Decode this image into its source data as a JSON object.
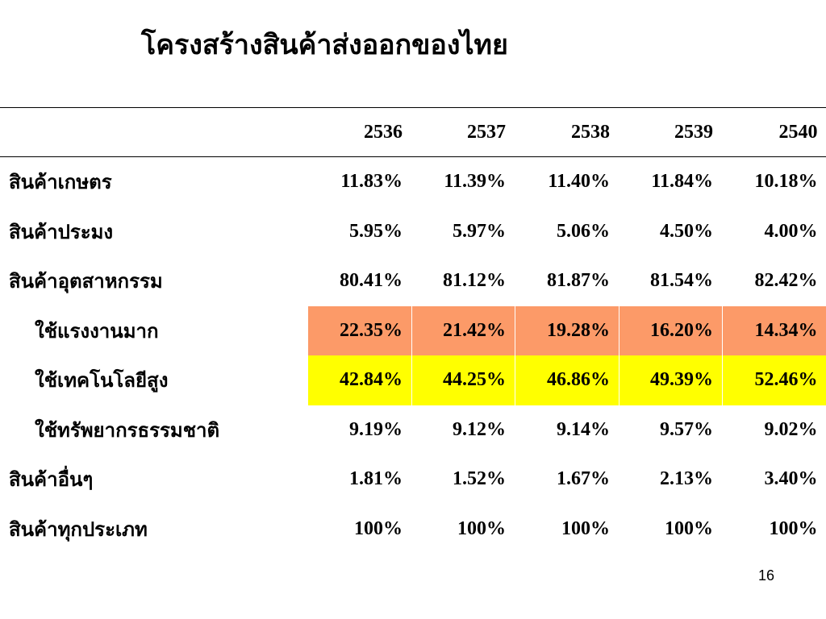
{
  "title": "โครงสร้างสินค้าส่งออกของไทย",
  "table": {
    "header": [
      "",
      "2536",
      "2537",
      "2538",
      "2539",
      "2540"
    ],
    "rows": [
      {
        "label": "สินค้าเกษตร",
        "values": [
          "11.83%",
          "11.39%",
          "11.40%",
          "11.84%",
          "10.18%"
        ]
      },
      {
        "label": "สินค้าประมง",
        "values": [
          "5.95%",
          "5.97%",
          "5.06%",
          "4.50%",
          "4.00%"
        ]
      },
      {
        "label": "สินค้าอุตสาหกรรม",
        "values": [
          "80.41%",
          "81.12%",
          "81.87%",
          "81.54%",
          "82.42%"
        ]
      },
      {
        "label": "ใช้แรงงานมาก",
        "values": [
          "22.35%",
          "21.42%",
          "19.28%",
          "16.20%",
          "14.34%"
        ],
        "fill": "#fc9a68"
      },
      {
        "label": "ใช้เทคโนโลยีสูง",
        "values": [
          "42.84%",
          "44.25%",
          "46.86%",
          "49.39%",
          "52.46%"
        ],
        "fill": "#ffff00"
      },
      {
        "label": "ใช้ทรัพยากรธรรมชาติ",
        "values": [
          "9.19%",
          "9.12%",
          "9.14%",
          "9.57%",
          "9.02%"
        ]
      },
      {
        "label": "สินค้าอื่นๆ",
        "values": [
          "1.81%",
          "1.52%",
          "1.67%",
          "2.13%",
          "3.40%"
        ]
      },
      {
        "label": "สินค้าทุกประเภท",
        "values": [
          "100%",
          "100%",
          "100%",
          "100%",
          "100%"
        ]
      }
    ]
  },
  "page_number": "16"
}
